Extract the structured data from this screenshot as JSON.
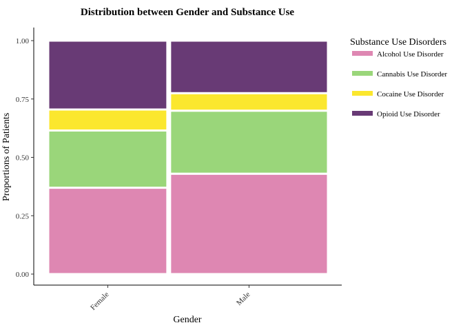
{
  "chart_data": {
    "type": "bar",
    "subtype": "mosaic",
    "title": "Distribution between Gender and Substance Use",
    "xlabel": "Gender",
    "ylabel": "Proportions of Patients",
    "ylim": [
      0,
      1
    ],
    "yticks": [
      "0.00",
      "0.25",
      "0.50",
      "0.75",
      "1.00"
    ],
    "ytick_values": [
      0,
      0.25,
      0.5,
      0.75,
      1
    ],
    "categories": [
      "Female",
      "Male"
    ],
    "category_widths": [
      0.43,
      0.57
    ],
    "legend_title": "Substance Use Disorders",
    "legend_position": "right",
    "grid": false,
    "series": [
      {
        "name": "Alcohol Use Disorder",
        "color": "#de87b2",
        "values": [
          0.37,
          0.43
        ]
      },
      {
        "name": "Cannabis Use Disorder",
        "color": "#9ad67a",
        "values": [
          0.245,
          0.27
        ]
      },
      {
        "name": "Cocaine Use Disorder",
        "color": "#fbe72e",
        "values": [
          0.09,
          0.075
        ]
      },
      {
        "name": "Opioid Use Disorder",
        "color": "#683a75",
        "values": [
          0.295,
          0.225
        ]
      }
    ]
  }
}
